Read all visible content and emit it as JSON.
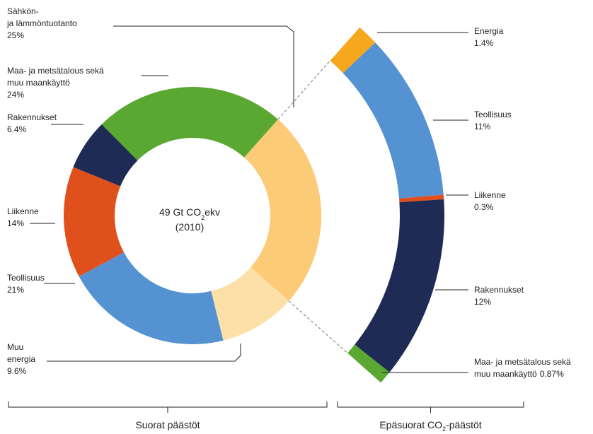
{
  "chart_data": {
    "type": "donut-with-arc",
    "center_label": {
      "text": "49 Gt CO",
      "sub": "2",
      "suffix": "ekv",
      "year": "(2010)"
    },
    "direct": [
      {
        "name": [
          "Sähkön-",
          "ja lämmöntuotanto"
        ],
        "value": 25,
        "value_label": "25%",
        "color": "#fccb78"
      },
      {
        "name": [
          "Muu",
          "energia"
        ],
        "value": 9.6,
        "value_label": "9.6%",
        "color": "#fde0a8"
      },
      {
        "name": [
          "Teollisuus"
        ],
        "value": 21,
        "value_label": "21%",
        "color": "#5592d2"
      },
      {
        "name": [
          "Liikenne"
        ],
        "value": 14,
        "value_label": "14%",
        "color": "#e0501d"
      },
      {
        "name": [
          "Rakennukset"
        ],
        "value": 6.4,
        "value_label": "6.4%",
        "color": "#1e2b55"
      },
      {
        "name": [
          "Maa- ja metsätalous sekä",
          "muu maankäyttö"
        ],
        "value": 24,
        "value_label": "24%",
        "color": "#5aa832"
      }
    ],
    "indirect": [
      {
        "name": [
          "Energia"
        ],
        "value": 1.4,
        "value_label": "1.4%",
        "color": "#f5a81c"
      },
      {
        "name": [
          "Teollisuus"
        ],
        "value": 11,
        "value_label": "11%",
        "color": "#5592d2"
      },
      {
        "name": [
          "Liikenne"
        ],
        "value": 0.3,
        "value_label": "0.3%",
        "color": "#e0501d"
      },
      {
        "name": [
          "Rakennukset"
        ],
        "value": 12,
        "value_label": "12%",
        "color": "#1e2b55"
      },
      {
        "name": [
          "Maa- ja metsätalous sekä",
          "muu maankäyttö"
        ],
        "value": 0.87,
        "value_label": "0.87%",
        "color": "#5aa832",
        "inline_value": true
      }
    ],
    "brackets": [
      {
        "text": "Suorat päästöt"
      },
      {
        "text": "Epäsuorat CO",
        "sub": "2",
        "suffix": "-päästöt"
      }
    ]
  }
}
